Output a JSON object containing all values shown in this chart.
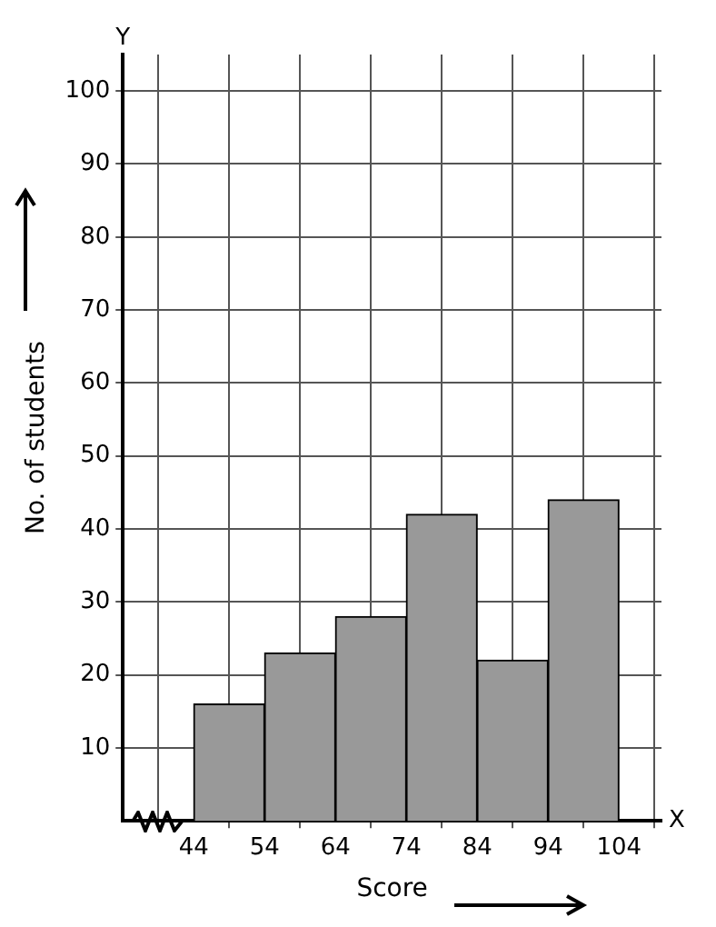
{
  "chart_data": {
    "type": "histogram",
    "xlabel": "Score",
    "ylabel": "No. of students",
    "bins": [
      44,
      54,
      64,
      74,
      84,
      94,
      104
    ],
    "values": [
      16,
      23,
      28,
      42,
      22,
      44
    ],
    "color": "#999999",
    "xlim": [
      34,
      110
    ],
    "xticks": [
      44,
      54,
      64,
      74,
      84,
      94,
      104
    ],
    "ylim": [
      0,
      105
    ],
    "yticks": [
      10,
      20,
      30,
      40,
      50,
      60,
      70,
      80,
      90,
      100
    ],
    "grid": true,
    "legend": false,
    "annotations": [
      "X",
      "Y"
    ]
  }
}
